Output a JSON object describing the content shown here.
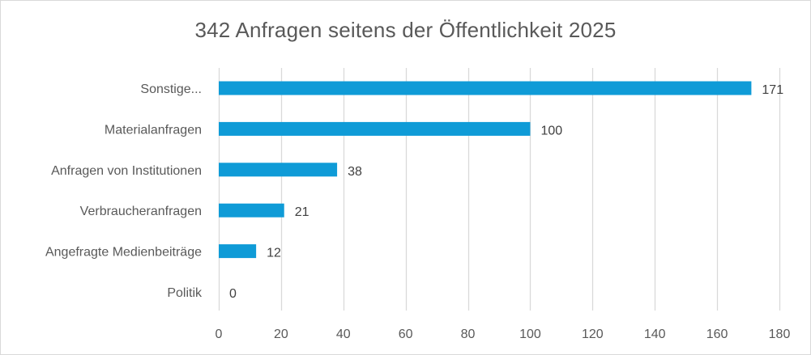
{
  "chart_data": {
    "type": "bar",
    "orientation": "horizontal",
    "title": "342 Anfragen seitens der Öffentlichkeit 2025",
    "categories": [
      "Sonstige...",
      "Materialanfragen",
      "Anfragen von Institutionen",
      "Verbraucheranfragen",
      "Angefragte Medienbeiträge",
      "Politik"
    ],
    "values": [
      171,
      100,
      38,
      21,
      12,
      0
    ],
    "xlim": [
      0,
      180
    ],
    "xticks": [
      0,
      20,
      40,
      60,
      80,
      100,
      120,
      140,
      160,
      180
    ],
    "grid": true,
    "legend": "none",
    "data_labels": true,
    "bar_color": "#0f9bd7",
    "grid_color": "#d9d9d9"
  }
}
